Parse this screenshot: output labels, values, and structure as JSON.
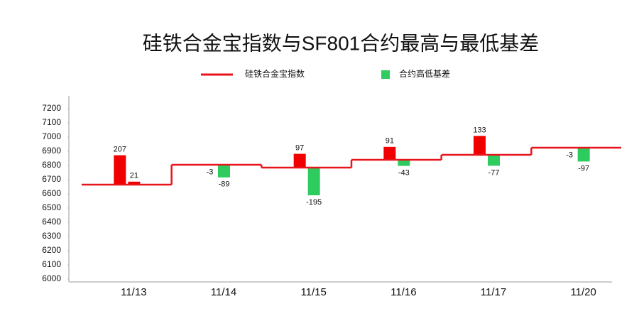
{
  "chart_data": {
    "type": "step-bar",
    "title": "硅铁合金宝指数与SF801合约最高与最低基差",
    "categories": [
      "11/13",
      "11/14",
      "11/15",
      "11/16",
      "11/17",
      "11/20"
    ],
    "series": [
      {
        "name": "硅铁合金宝指数",
        "color": "#e8141c",
        "values": [
          6665,
          6805,
          6785,
          6840,
          6875,
          6925
        ]
      },
      {
        "name": "合约高低基差",
        "color": "#2ecc5e",
        "positive_color": "#f00000",
        "values": [
          [
            207,
            21
          ],
          [
            -3,
            -89
          ],
          [
            97,
            -195
          ],
          [
            91,
            -43
          ],
          [
            133,
            -77
          ],
          [
            -3,
            -97
          ]
        ]
      }
    ],
    "ylim": [
      6000,
      7200
    ],
    "yticks": [
      6000,
      6100,
      6200,
      6300,
      6400,
      6500,
      6600,
      6700,
      6800,
      6900,
      7000,
      7100,
      7200
    ],
    "grid": false,
    "legend": "top"
  }
}
